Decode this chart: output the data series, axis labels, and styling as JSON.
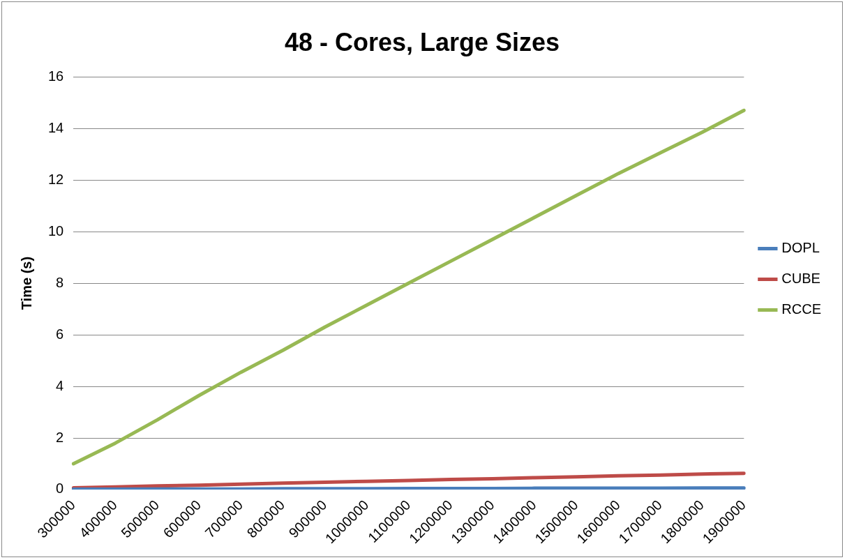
{
  "chart_data": {
    "type": "line",
    "title": "48 - Cores, Large Sizes",
    "ylabel": "Time (s)",
    "categories": [
      "300000",
      "400000",
      "500000",
      "600000",
      "700000",
      "800000",
      "900000",
      "1000000",
      "1100000",
      "1200000",
      "1300000",
      "1400000",
      "1500000",
      "1600000",
      "1700000",
      "1800000",
      "1900000"
    ],
    "series": [
      {
        "name": "DOPL",
        "color": "#4a7ebb",
        "values": [
          0.01,
          0.01,
          0.02,
          0.02,
          0.02,
          0.03,
          0.03,
          0.03,
          0.04,
          0.04,
          0.04,
          0.05,
          0.05,
          0.05,
          0.05,
          0.06,
          0.06
        ]
      },
      {
        "name": "CUBE",
        "color": "#be4b48",
        "values": [
          0.07,
          0.1,
          0.14,
          0.17,
          0.21,
          0.25,
          0.28,
          0.32,
          0.35,
          0.39,
          0.42,
          0.46,
          0.49,
          0.53,
          0.56,
          0.6,
          0.63
        ]
      },
      {
        "name": "RCCE",
        "color": "#98b954",
        "values": [
          1.0,
          1.8,
          2.7,
          3.65,
          4.55,
          5.4,
          6.3,
          7.15,
          8.0,
          8.85,
          9.7,
          10.55,
          11.4,
          12.25,
          13.05,
          13.85,
          14.7
        ]
      }
    ],
    "ylim": [
      0,
      16
    ],
    "yticks": [
      0,
      2,
      4,
      6,
      8,
      10,
      12,
      14,
      16
    ],
    "grid": "y",
    "legend": "right",
    "marker": "none",
    "line_style": "solid"
  }
}
